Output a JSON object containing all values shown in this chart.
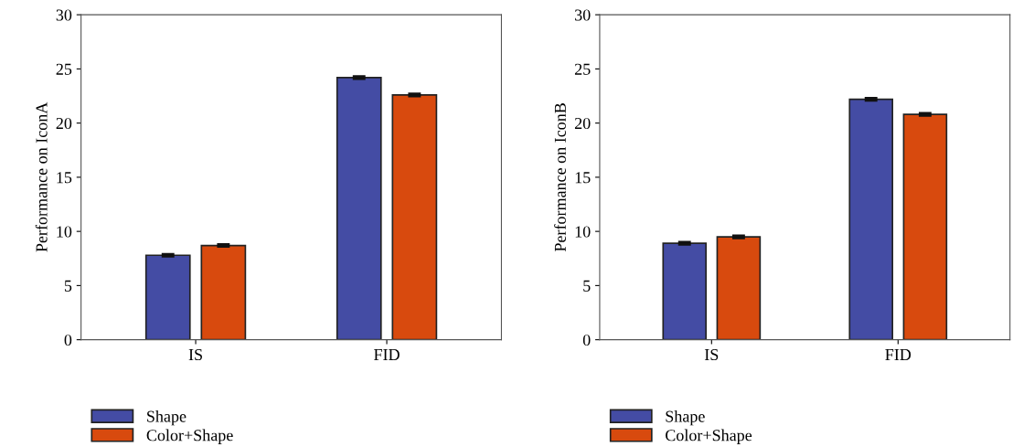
{
  "chart_data": [
    {
      "type": "bar",
      "ylabel": "Performance on IconA",
      "categories": [
        "IS",
        "FID"
      ],
      "ylim": [
        0,
        30
      ],
      "yticks": [
        0,
        5,
        10,
        15,
        20,
        25,
        30
      ],
      "grid": false,
      "legend": "bottom left",
      "series": [
        {
          "name": "Shape",
          "color": "#444ca4",
          "values": [
            7.8,
            24.2
          ],
          "errors": [
            0.1,
            0.1
          ]
        },
        {
          "name": "Color+Shape",
          "color": "#d84a0e",
          "values": [
            8.7,
            22.6
          ],
          "errors": [
            0.1,
            0.1
          ]
        }
      ]
    },
    {
      "type": "bar",
      "ylabel": "Performance on IconB",
      "categories": [
        "IS",
        "FID"
      ],
      "ylim": [
        0,
        30
      ],
      "yticks": [
        0,
        5,
        10,
        15,
        20,
        25,
        30
      ],
      "grid": false,
      "legend": "bottom left",
      "series": [
        {
          "name": "Shape",
          "color": "#444ca4",
          "values": [
            8.9,
            22.2
          ],
          "errors": [
            0.1,
            0.1
          ]
        },
        {
          "name": "Color+Shape",
          "color": "#d84a0e",
          "values": [
            9.5,
            20.8
          ],
          "errors": [
            0.1,
            0.1
          ]
        }
      ]
    }
  ]
}
